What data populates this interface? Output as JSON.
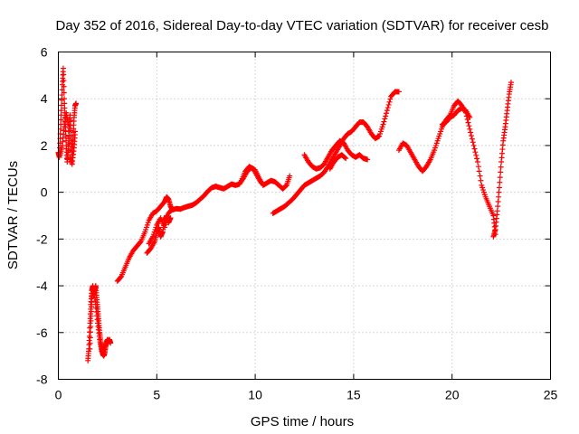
{
  "chart_data": {
    "type": "scatter",
    "title": "Day 352 of 2016, Sidereal Day-to-day VTEC variation (SDTVAR) for receiver cesb",
    "xlabel": "GPS time / hours",
    "ylabel": "SDTVAR / TECUs",
    "xlim": [
      0,
      25
    ],
    "ylim": [
      -8,
      6
    ],
    "xticks": [
      "0",
      "5",
      "10",
      "15",
      "20",
      "25"
    ],
    "yticks": [
      "-8",
      "-6",
      "-4",
      "-2",
      "0",
      "2",
      "4",
      "6"
    ],
    "grid": true,
    "legend": "none",
    "marker": "+",
    "color": "#ff0000",
    "segments": [
      [
        [
          0.0,
          1.7
        ],
        [
          0.05,
          1.5
        ],
        [
          0.1,
          2.5
        ],
        [
          0.15,
          3.5
        ],
        [
          0.2,
          4.6
        ],
        [
          0.25,
          5.3
        ],
        [
          0.3,
          4.0
        ],
        [
          0.35,
          3.0
        ],
        [
          0.4,
          2.0
        ],
        [
          0.45,
          1.3
        ],
        [
          0.5,
          1.8
        ],
        [
          0.55,
          2.6
        ],
        [
          0.6,
          3.3
        ],
        [
          0.65,
          2.2
        ],
        [
          0.7,
          1.6
        ],
        [
          0.75,
          2.4
        ],
        [
          0.8,
          3.2
        ],
        [
          0.85,
          3.7
        ],
        [
          0.9,
          3.8
        ]
      ],
      [
        [
          0.1,
          1.6
        ],
        [
          0.2,
          2.0
        ],
        [
          0.3,
          2.8
        ],
        [
          0.4,
          3.4
        ],
        [
          0.5,
          2.9
        ],
        [
          0.6,
          1.5
        ],
        [
          0.7,
          1.2
        ],
        [
          0.8,
          1.9
        ],
        [
          0.85,
          2.6
        ]
      ],
      [
        [
          1.5,
          -7.2
        ],
        [
          1.55,
          -6.7
        ],
        [
          1.6,
          -5.8
        ],
        [
          1.65,
          -4.8
        ],
        [
          1.7,
          -4.2
        ],
        [
          1.75,
          -4.0
        ],
        [
          1.8,
          -4.4
        ],
        [
          1.85,
          -4.2
        ],
        [
          1.9,
          -4.0
        ],
        [
          1.95,
          -4.5
        ],
        [
          2.0,
          -5.0
        ],
        [
          2.05,
          -5.5
        ],
        [
          2.1,
          -6.0
        ],
        [
          2.15,
          -6.4
        ],
        [
          2.2,
          -6.7
        ],
        [
          2.25,
          -6.9
        ],
        [
          2.3,
          -7.0
        ],
        [
          2.35,
          -6.9
        ],
        [
          2.4,
          -6.6
        ],
        [
          2.45,
          -6.4
        ],
        [
          2.5,
          -6.3
        ],
        [
          2.55,
          -6.4
        ],
        [
          2.6,
          -6.3
        ],
        [
          2.65,
          -6.45
        ]
      ],
      [
        [
          1.6,
          -6.7
        ],
        [
          1.65,
          -5.5
        ],
        [
          1.7,
          -4.5
        ],
        [
          1.8,
          -4.1
        ],
        [
          1.9,
          -4.8
        ],
        [
          2.0,
          -5.6
        ],
        [
          2.1,
          -6.3
        ],
        [
          2.2,
          -6.8
        ],
        [
          2.3,
          -6.6
        ]
      ],
      [
        [
          3.0,
          -3.8
        ],
        [
          3.2,
          -3.6
        ],
        [
          3.4,
          -3.2
        ],
        [
          3.6,
          -2.8
        ],
        [
          3.8,
          -2.5
        ],
        [
          4.0,
          -2.3
        ],
        [
          4.2,
          -2.1
        ],
        [
          4.4,
          -1.7
        ],
        [
          4.6,
          -1.2
        ],
        [
          4.8,
          -0.9
        ],
        [
          5.0,
          -0.8
        ],
        [
          5.2,
          -0.6
        ],
        [
          5.4,
          -0.4
        ],
        [
          5.5,
          -0.2
        ],
        [
          5.6,
          -0.3
        ],
        [
          5.7,
          -0.6
        ],
        [
          5.8,
          -0.75
        ],
        [
          6.0,
          -0.7
        ],
        [
          6.2,
          -0.72
        ],
        [
          6.4,
          -0.65
        ],
        [
          6.6,
          -0.6
        ],
        [
          6.8,
          -0.55
        ],
        [
          7.0,
          -0.45
        ],
        [
          7.2,
          -0.3
        ],
        [
          7.4,
          -0.15
        ],
        [
          7.6,
          0.05
        ],
        [
          7.8,
          0.2
        ],
        [
          8.0,
          0.25
        ],
        [
          8.2,
          0.2
        ],
        [
          8.4,
          0.15
        ],
        [
          8.6,
          0.25
        ],
        [
          8.8,
          0.35
        ],
        [
          9.0,
          0.3
        ],
        [
          9.2,
          0.35
        ],
        [
          9.4,
          0.6
        ],
        [
          9.6,
          0.9
        ],
        [
          9.8,
          1.05
        ],
        [
          10.0,
          0.95
        ],
        [
          10.2,
          0.6
        ],
        [
          10.4,
          0.3
        ],
        [
          10.6,
          0.4
        ],
        [
          10.8,
          0.5
        ],
        [
          11.0,
          0.45
        ],
        [
          11.2,
          0.3
        ],
        [
          11.4,
          0.15
        ],
        [
          11.6,
          0.3
        ],
        [
          11.75,
          0.7
        ]
      ],
      [
        [
          4.5,
          -2.6
        ],
        [
          4.7,
          -2.4
        ],
        [
          4.9,
          -2.1
        ],
        [
          5.0,
          -1.7
        ],
        [
          5.1,
          -1.5
        ],
        [
          5.2,
          -1.9
        ],
        [
          5.3,
          -1.7
        ],
        [
          5.4,
          -1.2
        ],
        [
          5.5,
          -1.0
        ],
        [
          5.6,
          -1.3
        ],
        [
          5.7,
          -1.1
        ]
      ],
      [
        [
          4.6,
          -2.2
        ],
        [
          4.8,
          -1.9
        ],
        [
          5.0,
          -1.4
        ],
        [
          5.2,
          -1.1
        ],
        [
          5.4,
          -1.5
        ],
        [
          5.6,
          -0.9
        ],
        [
          5.8,
          -0.7
        ]
      ],
      [
        [
          9.3,
          0.5
        ],
        [
          9.5,
          0.9
        ],
        [
          9.7,
          1.1
        ],
        [
          9.9,
          1.0
        ],
        [
          10.1,
          0.7
        ],
        [
          10.3,
          0.4
        ]
      ],
      [
        [
          10.9,
          -0.9
        ],
        [
          11.1,
          -0.8
        ],
        [
          11.3,
          -0.7
        ],
        [
          11.5,
          -0.6
        ],
        [
          11.7,
          -0.45
        ],
        [
          11.9,
          -0.3
        ],
        [
          12.1,
          -0.1
        ],
        [
          12.3,
          0.1
        ],
        [
          12.5,
          0.3
        ],
        [
          12.7,
          0.4
        ],
        [
          12.9,
          0.5
        ],
        [
          13.1,
          0.6
        ],
        [
          13.3,
          0.7
        ],
        [
          13.5,
          0.85
        ],
        [
          13.7,
          1.1
        ],
        [
          13.9,
          1.4
        ],
        [
          14.1,
          1.7
        ],
        [
          14.3,
          2.0
        ],
        [
          14.5,
          2.3
        ],
        [
          14.7,
          2.5
        ],
        [
          14.9,
          2.6
        ],
        [
          15.1,
          2.8
        ],
        [
          15.3,
          3.0
        ],
        [
          15.5,
          3.0
        ],
        [
          15.7,
          2.8
        ],
        [
          15.9,
          2.5
        ],
        [
          16.1,
          2.3
        ],
        [
          16.3,
          2.4
        ],
        [
          16.5,
          2.9
        ],
        [
          16.7,
          3.5
        ],
        [
          16.9,
          4.1
        ],
        [
          17.1,
          4.3
        ],
        [
          17.3,
          4.3
        ]
      ],
      [
        [
          12.5,
          1.6
        ],
        [
          12.7,
          1.3
        ],
        [
          12.9,
          1.1
        ],
        [
          13.1,
          1.0
        ],
        [
          13.3,
          1.05
        ],
        [
          13.5,
          1.2
        ],
        [
          13.7,
          1.5
        ],
        [
          13.9,
          1.8
        ],
        [
          14.1,
          2.0
        ],
        [
          14.3,
          2.2
        ],
        [
          14.5,
          2.1
        ],
        [
          14.7,
          1.8
        ],
        [
          14.9,
          1.6
        ],
        [
          15.1,
          1.5
        ],
        [
          15.3,
          1.6
        ],
        [
          15.5,
          1.45
        ],
        [
          15.7,
          1.4
        ]
      ],
      [
        [
          13.8,
          1.0
        ],
        [
          14.0,
          1.3
        ],
        [
          14.2,
          1.5
        ],
        [
          14.4,
          1.6
        ],
        [
          14.6,
          1.45
        ]
      ],
      [
        [
          17.3,
          1.8
        ],
        [
          17.5,
          2.1
        ],
        [
          17.7,
          2.0
        ],
        [
          17.9,
          1.7
        ],
        [
          18.1,
          1.4
        ],
        [
          18.3,
          1.1
        ],
        [
          18.5,
          0.9
        ],
        [
          18.7,
          1.1
        ],
        [
          18.9,
          1.4
        ],
        [
          19.1,
          1.8
        ],
        [
          19.3,
          2.3
        ],
        [
          19.5,
          2.8
        ],
        [
          19.7,
          3.1
        ],
        [
          19.9,
          3.3
        ],
        [
          20.1,
          3.7
        ],
        [
          20.3,
          3.9
        ],
        [
          20.5,
          3.7
        ],
        [
          20.7,
          3.4
        ],
        [
          20.9,
          2.7
        ],
        [
          21.1,
          2.0
        ],
        [
          21.3,
          1.3
        ],
        [
          21.5,
          0.3
        ],
        [
          21.7,
          -0.2
        ],
        [
          21.9,
          -0.6
        ],
        [
          22.1,
          -1.0
        ],
        [
          22.2,
          -1.8
        ]
      ],
      [
        [
          19.5,
          2.9
        ],
        [
          19.7,
          3.0
        ],
        [
          19.9,
          3.2
        ],
        [
          20.1,
          3.3
        ],
        [
          20.3,
          3.5
        ],
        [
          20.5,
          3.6
        ],
        [
          20.7,
          3.5
        ],
        [
          20.9,
          3.2
        ]
      ],
      [
        [
          22.1,
          -1.9
        ],
        [
          22.2,
          -1.6
        ],
        [
          22.3,
          -0.8
        ],
        [
          22.4,
          0.2
        ],
        [
          22.5,
          1.3
        ],
        [
          22.6,
          2.2
        ],
        [
          22.7,
          2.8
        ],
        [
          22.8,
          3.5
        ],
        [
          22.9,
          4.2
        ],
        [
          23.0,
          4.7
        ]
      ]
    ]
  }
}
